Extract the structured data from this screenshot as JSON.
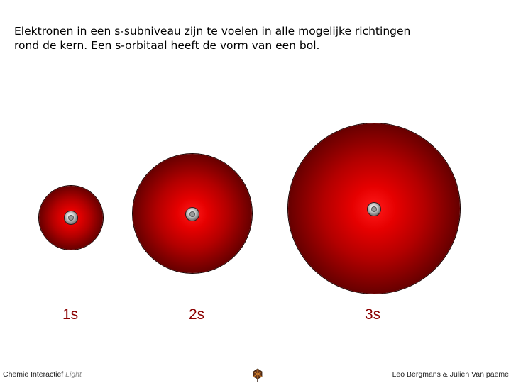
{
  "intro": {
    "line1": "Elektronen in een s-subniveau zijn te voelen in alle mogelijke richtingen",
    "line2": "rond de kern. Een s-orbitaal heeft de vorm van een bol."
  },
  "orbitals": [
    {
      "label": "1s"
    },
    {
      "label": "2s"
    },
    {
      "label": "3s"
    }
  ],
  "colors": {
    "orbital_core": "#ff1a1a",
    "orbital_edge": "#0a0000",
    "label": "#8b0000"
  },
  "footer": {
    "brand": "Chemie Interactief",
    "brand_suffix": "Light",
    "logo_icon": "leaf-logo-icon",
    "credits": "Leo Bergmans & Julien Van paeme"
  }
}
